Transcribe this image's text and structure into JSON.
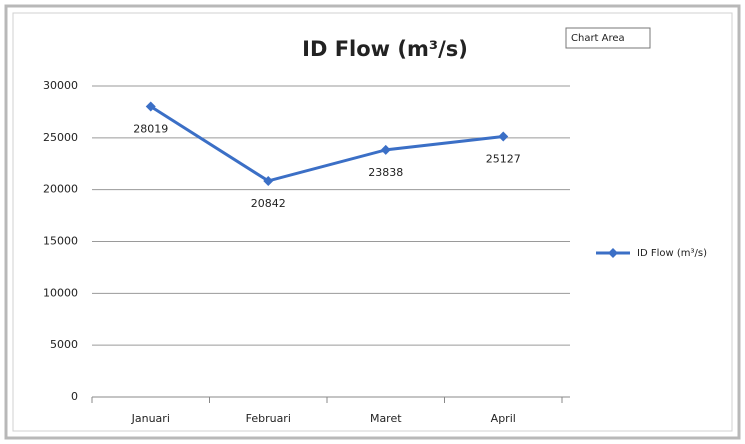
{
  "chart_data": {
    "type": "line",
    "title": "ID Flow (m³/s)",
    "tooltip": "Chart Area",
    "categories": [
      "Januari",
      "Februari",
      "Maret",
      "April"
    ],
    "series": [
      {
        "name": "ID Flow (m³/s)",
        "color": "#3b6fc6",
        "values": [
          28019,
          20842,
          23838,
          25127
        ]
      }
    ],
    "ylim": [
      0,
      30000
    ],
    "yticks": [
      0,
      5000,
      10000,
      15000,
      20000,
      25000,
      30000
    ],
    "grid": true,
    "legend": "right"
  }
}
